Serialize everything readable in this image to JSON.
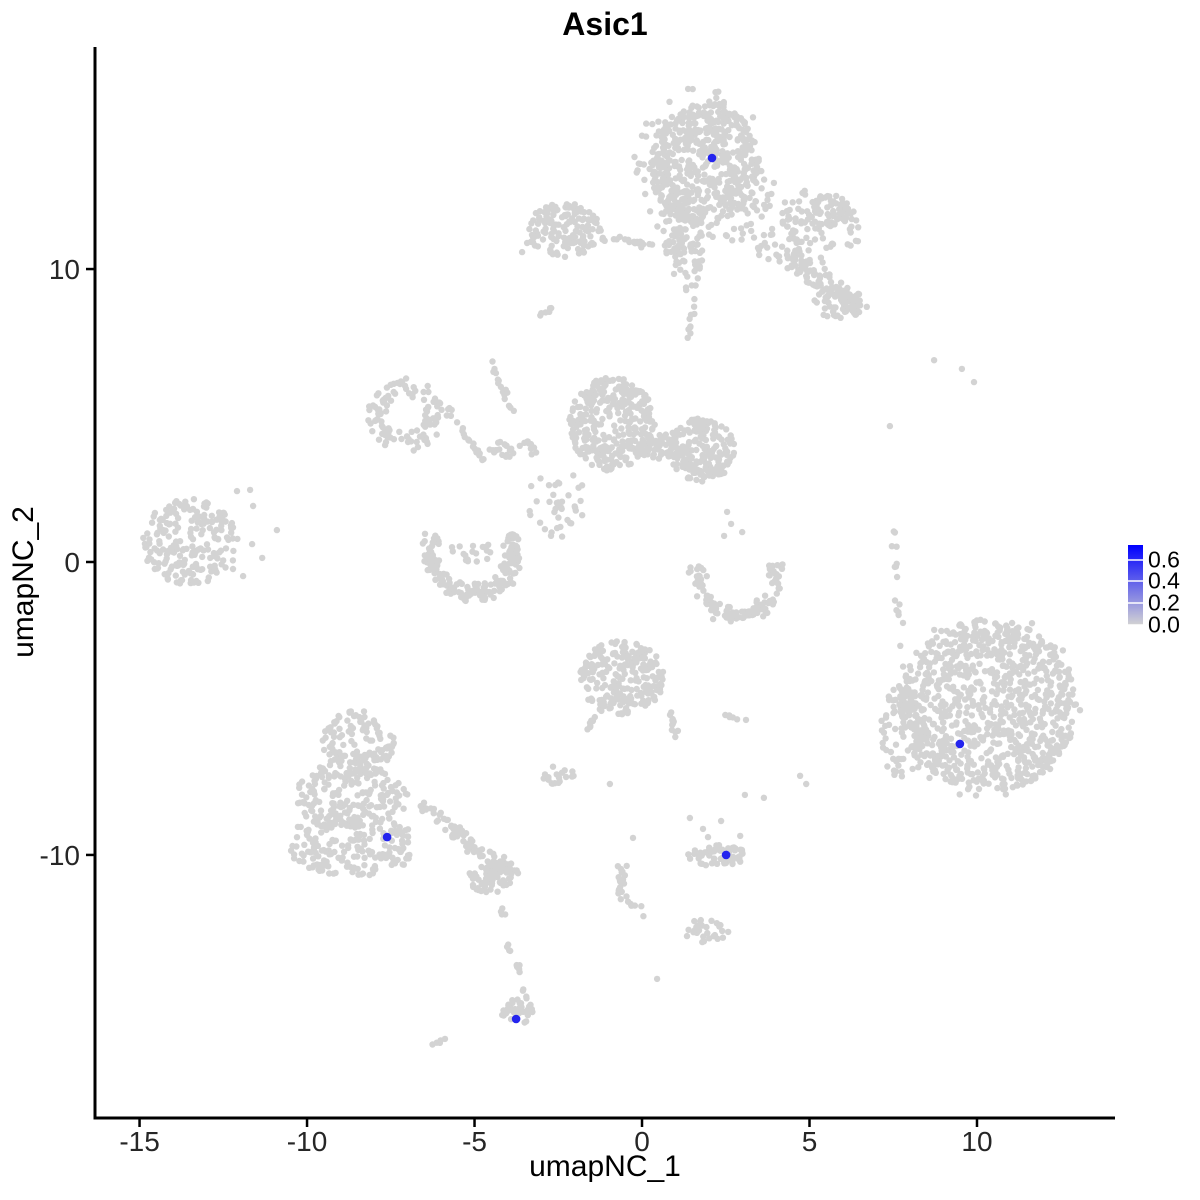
{
  "chart_data": {
    "type": "scatter",
    "title": "Asic1",
    "xlabel": "umapNC_1",
    "ylabel": "umapNC_2",
    "xlim": [
      -16.33,
      14.12
    ],
    "ylim": [
      -18.98,
      17.58
    ],
    "xticks": [
      "-15",
      "-10",
      "-5",
      "0",
      "5",
      "10"
    ],
    "xtick_values": [
      -15,
      -10,
      -5,
      0,
      5,
      10
    ],
    "yticks": [
      "10",
      "0",
      "-10"
    ],
    "ytick_values": [
      10,
      0,
      -10
    ],
    "grid": false,
    "point_color": "#d3d3d3",
    "highlight_color": "#2424ee",
    "axis_color": "#000000",
    "tick_label_color": "#262626",
    "legend": {
      "labels": [
        "0.6",
        "0.4",
        "0.2",
        "0.0"
      ],
      "values": [
        0.6,
        0.4,
        0.2,
        0.0
      ],
      "vmax": 0.735,
      "color_low": "#d3d3d3",
      "color_high": "#0000ff",
      "position": "right"
    },
    "seed": 42,
    "clusters": [
      {
        "kind": "blob",
        "cx": 1.88,
        "cy": 13.55,
        "rx": 1.64,
        "ry": 2.12,
        "n": 480
      },
      {
        "kind": "blob",
        "cx": 1.88,
        "cy": 13.5,
        "rx": 2.15,
        "ry": 2.73,
        "n": 140,
        "pw": 0.55
      },
      {
        "kind": "blob",
        "cx": 1.37,
        "cy": 10.48,
        "rx": 0.48,
        "ry": 1.3,
        "n": 55
      },
      {
        "kind": "strand",
        "x1": 1.64,
        "y1": 9.11,
        "x2": 1.34,
        "y2": 7.65,
        "w": 0.18,
        "n": 10
      },
      {
        "kind": "blob",
        "cx": 4.72,
        "cy": 11.4,
        "rx": 1.85,
        "ry": 1.3,
        "n": 120,
        "pw": 0.6
      },
      {
        "kind": "blob",
        "cx": 5.61,
        "cy": 11.95,
        "rx": 0.66,
        "ry": 0.58,
        "n": 45
      },
      {
        "kind": "strand",
        "x1": 4.42,
        "y1": 10.58,
        "x2": 6.45,
        "y2": 8.43,
        "w": 0.9,
        "n": 110
      },
      {
        "kind": "blob",
        "cx": 5.85,
        "cy": 8.87,
        "rx": 0.72,
        "ry": 0.58,
        "n": 45
      },
      {
        "kind": "blob",
        "cx": -2.3,
        "cy": 11.33,
        "rx": 1.13,
        "ry": 0.92,
        "n": 150
      },
      {
        "kind": "strand",
        "x1": -1.25,
        "y1": 11.06,
        "x2": 0.39,
        "y2": 10.82,
        "w": 0.3,
        "n": 22
      },
      {
        "kind": "blob",
        "cx": 1.01,
        "cy": 11.4,
        "rx": 0.42,
        "ry": 1.23,
        "n": 48
      },
      {
        "kind": "strand",
        "x1": -3.16,
        "y1": 8.26,
        "x2": -2.57,
        "y2": 8.74,
        "w": 0.2,
        "n": 6
      },
      {
        "kind": "pts",
        "pts": [
          [
            -3.58,
            10.58
          ],
          [
            -3.43,
            10.89
          ]
        ]
      },
      {
        "kind": "ring",
        "cx": -7.07,
        "cy": 5.02,
        "rin": 0.55,
        "rout": 1.15,
        "n": 110
      },
      {
        "kind": "strand",
        "x1": -5.88,
        "y1": 5.36,
        "x2": -4.66,
        "y2": 3.41,
        "w": 0.3,
        "n": 22
      },
      {
        "kind": "strand",
        "x1": -4.57,
        "y1": 7.0,
        "x2": -3.88,
        "y2": 5.12,
        "w": 0.24,
        "n": 16
      },
      {
        "kind": "blob",
        "cx": -3.79,
        "cy": 3.82,
        "rx": 0.84,
        "ry": 0.34,
        "n": 28
      },
      {
        "kind": "blob",
        "cx": -0.9,
        "cy": 4.71,
        "rx": 1.28,
        "ry": 1.6,
        "n": 330
      },
      {
        "kind": "blob",
        "cx": 0.54,
        "cy": 3.92,
        "rx": 0.81,
        "ry": 0.44,
        "n": 48
      },
      {
        "kind": "blob",
        "cx": 1.76,
        "cy": 3.82,
        "rx": 1.01,
        "ry": 1.09,
        "n": 200
      },
      {
        "kind": "blob",
        "cx": -2.57,
        "cy": 2.05,
        "rx": 0.9,
        "ry": 1.23,
        "n": 40,
        "pw": 0.6
      },
      {
        "kind": "arc",
        "cx": -5.07,
        "cy": 0.24,
        "R": 1.25,
        "w": 0.55,
        "a0": 150,
        "a1": 390,
        "n": 200
      },
      {
        "kind": "blob",
        "cx": -5.07,
        "cy": 0.35,
        "rx": 0.65,
        "ry": 0.45,
        "n": 18,
        "pw": 0.6
      },
      {
        "kind": "blob",
        "cx": -13.49,
        "cy": 0.68,
        "rx": 1.43,
        "ry": 1.47,
        "n": 210
      },
      {
        "kind": "pts",
        "pts": [
          [
            -11.7,
            2.46
          ],
          [
            -11.61,
            1.91
          ],
          [
            -10.9,
            1.09
          ],
          [
            -11.64,
            0.61
          ],
          [
            -12.21,
            -0.24
          ],
          [
            -11.91,
            -0.48
          ],
          [
            -11.34,
            0.14
          ],
          [
            -12.09,
            2.42
          ]
        ]
      },
      {
        "kind": "arc",
        "cx": 2.84,
        "cy": -0.55,
        "R": 1.2,
        "w": 0.55,
        "a0": 160,
        "a1": 385,
        "n": 130
      },
      {
        "kind": "pts",
        "pts": [
          [
            2.54,
            1.71
          ],
          [
            2.66,
            1.3
          ],
          [
            2.45,
            0.89
          ],
          [
            2.99,
            1.02
          ]
        ]
      },
      {
        "kind": "strand",
        "x1": 7.55,
        "y1": 1.37,
        "x2": 7.7,
        "y2": -3.0,
        "w": 0.3,
        "n": 14
      },
      {
        "kind": "pts",
        "pts": [
          [
            8.72,
            6.89
          ],
          [
            9.55,
            6.59
          ],
          [
            9.91,
            6.14
          ],
          [
            7.4,
            4.64
          ],
          [
            7.79,
            -2.08
          ]
        ]
      },
      {
        "kind": "blob",
        "cx": -8.48,
        "cy": -6.14,
        "rx": 1.07,
        "ry": 1.09,
        "n": 120
      },
      {
        "kind": "blob",
        "cx": -8.66,
        "cy": -8.02,
        "rx": 1.67,
        "ry": 1.23,
        "n": 180
      },
      {
        "kind": "blob",
        "cx": -8.66,
        "cy": -9.66,
        "rx": 1.97,
        "ry": 1.09,
        "n": 190
      },
      {
        "kind": "strand",
        "x1": -6.63,
        "y1": -8.29,
        "x2": -4.09,
        "y2": -10.44,
        "w": 0.66,
        "n": 70
      },
      {
        "kind": "blob",
        "cx": -4.24,
        "cy": -10.65,
        "rx": 0.6,
        "ry": 0.44,
        "n": 30
      },
      {
        "kind": "blob",
        "cx": -4.48,
        "cy": -10.78,
        "rx": 0.72,
        "ry": 0.51,
        "n": 45
      },
      {
        "kind": "strand",
        "x1": -4.24,
        "y1": -11.64,
        "x2": -3.88,
        "y2": -13.41,
        "w": 0.18,
        "n": 8
      },
      {
        "kind": "strand",
        "x1": -3.76,
        "y1": -13.69,
        "x2": -3.43,
        "y2": -14.95,
        "w": 0.24,
        "n": 10
      },
      {
        "kind": "blob",
        "cx": -3.7,
        "cy": -15.36,
        "rx": 0.51,
        "ry": 0.44,
        "n": 30
      },
      {
        "kind": "strand",
        "x1": -6.24,
        "y1": -16.52,
        "x2": -5.79,
        "y2": -16.18,
        "w": 0.15,
        "n": 5
      },
      {
        "kind": "blob",
        "cx": -0.6,
        "cy": -3.96,
        "rx": 1.25,
        "ry": 1.3,
        "n": 230
      },
      {
        "kind": "strand",
        "x1": 0.78,
        "y1": -5.05,
        "x2": 1.1,
        "y2": -6.14,
        "w": 0.3,
        "n": 12
      },
      {
        "kind": "strand",
        "x1": -1.37,
        "y1": -5.12,
        "x2": -1.73,
        "y2": -6.08,
        "w": 0.18,
        "n": 7
      },
      {
        "kind": "blob",
        "cx": -2.45,
        "cy": -7.3,
        "rx": 0.51,
        "ry": 0.34,
        "n": 18
      },
      {
        "kind": "pts",
        "pts": [
          [
            -0.96,
            -7.58
          ],
          [
            -0.27,
            -9.42
          ],
          [
            1.43,
            -8.74
          ],
          [
            2.93,
            -9.35
          ],
          [
            4.72,
            -7.3
          ],
          [
            4.9,
            -7.58
          ],
          [
            3.64,
            -8.05
          ]
        ]
      },
      {
        "kind": "strand",
        "x1": 2.39,
        "y1": -5.12,
        "x2": 3.28,
        "y2": -5.46,
        "w": 0.24,
        "n": 6
      },
      {
        "kind": "blob",
        "cx": 2.24,
        "cy": -10.03,
        "rx": 0.87,
        "ry": 0.38,
        "n": 65
      },
      {
        "kind": "pts",
        "pts": [
          [
            1.82,
            -9.11
          ],
          [
            1.97,
            -9.39
          ],
          [
            2.36,
            -8.84
          ],
          [
            3.07,
            -7.95
          ]
        ]
      },
      {
        "kind": "strand",
        "x1": -0.87,
        "y1": -10.24,
        "x2": -0.06,
        "y2": -12.35,
        "w": 0.36,
        "n": 26,
        "wig": 1.5
      },
      {
        "kind": "blob",
        "cx": 1.94,
        "cy": -12.59,
        "rx": 0.66,
        "ry": 0.48,
        "n": 32
      },
      {
        "kind": "pts",
        "pts": [
          [
            0.45,
            -14.23
          ]
        ]
      },
      {
        "kind": "blob",
        "cx": 10.33,
        "cy": -4.91,
        "rx": 2.63,
        "ry": 2.94,
        "n": 780
      },
      {
        "kind": "blob",
        "cx": 10.33,
        "cy": -4.91,
        "rx": 2.8,
        "ry": 3.2,
        "n": 150,
        "pw": 0.55
      },
      {
        "kind": "blob",
        "cx": 7.79,
        "cy": -5.84,
        "rx": 0.66,
        "ry": 1.64,
        "n": 90
      }
    ],
    "highlighted_cells": [
      {
        "x": 2.09,
        "y": 13.79
      },
      {
        "x": -7.61,
        "y": -9.39
      },
      {
        "x": 2.51,
        "y": -10.0
      },
      {
        "x": -3.76,
        "y": -15.6
      },
      {
        "x": 9.49,
        "y": -6.21
      }
    ]
  }
}
